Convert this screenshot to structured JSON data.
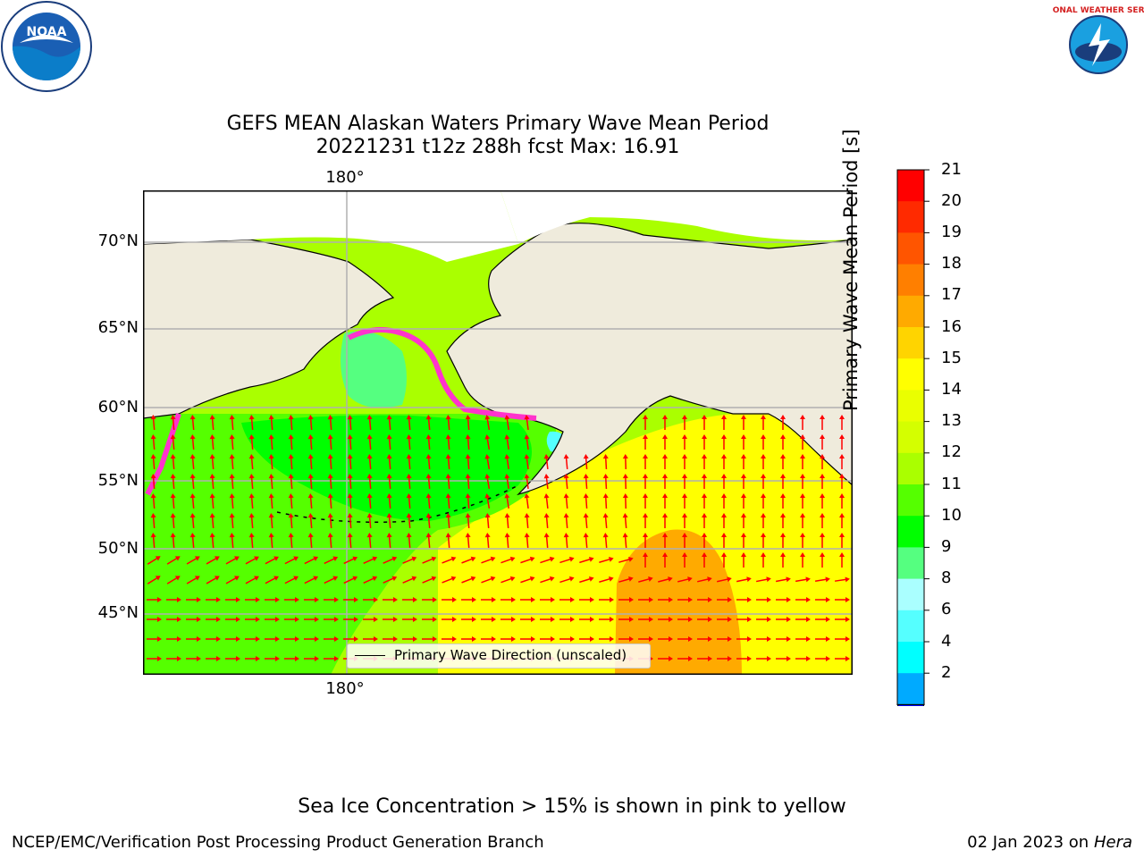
{
  "title": {
    "line1": "GEFS MEAN Alaskan Waters Primary Wave Mean Period",
    "line2": "20221231 t12z 288h fcst   Max: 16.91"
  },
  "logos": {
    "left": "NOAA",
    "right": "NATIONAL WEATHER SERVICE"
  },
  "map": {
    "lon_label_top": "180°",
    "lon_label_bottom": "180°",
    "lat_labels": [
      "70°N",
      "65°N",
      "60°N",
      "55°N",
      "50°N",
      "45°N"
    ],
    "legend_label": "Primary Wave Direction (unscaled)",
    "colors": {
      "land": "#efebdc",
      "grid": "#b0b0b0",
      "arrow": "#ff0000",
      "ice": "#ff33cc"
    }
  },
  "colorbar": {
    "label": "Primary Wave Mean Period [s]",
    "ticks": [
      "21",
      "20",
      "19",
      "18",
      "17",
      "16",
      "15",
      "14",
      "13",
      "12",
      "11",
      "10",
      "9",
      "8",
      "6",
      "4",
      "2"
    ],
    "colors": [
      "#ff0000",
      "#ff2a00",
      "#ff5500",
      "#ff7f00",
      "#ffaa00",
      "#ffd400",
      "#ffff00",
      "#eaff00",
      "#d4ff00",
      "#aaff00",
      "#55ff00",
      "#00ff00",
      "#55ff80",
      "#aaffff",
      "#55ffff",
      "#00ffff",
      "#00aaff",
      "#0055ff"
    ],
    "under_color": "#0000ff"
  },
  "footer": {
    "ice_note": "Sea Ice Concentration > 15% is shown in pink to yellow",
    "left": "NCEP/EMC/Verification Post Processing Product Generation Branch",
    "right_date": "02 Jan 2023 on ",
    "right_host": "Hera"
  }
}
